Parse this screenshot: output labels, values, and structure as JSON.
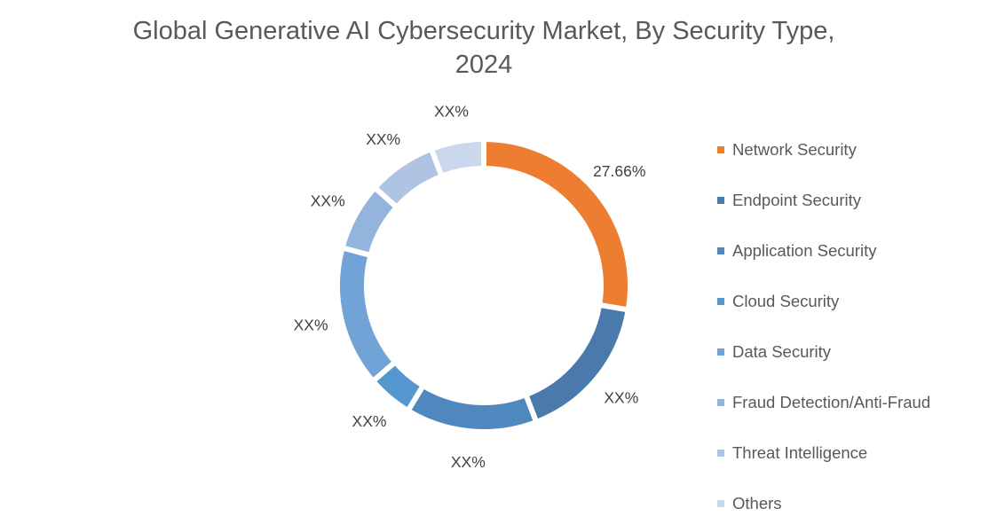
{
  "chart_data": {
    "type": "pie",
    "variant": "donut",
    "title_lines": [
      "Global Generative AI Cybersecurity Market, By Security Type,",
      "2024"
    ],
    "legend_position": "right",
    "categories": [
      "Network Security",
      "Endpoint Security",
      "Application Security",
      "Cloud Security",
      "Data Security",
      "Fraud Detection/Anti-Fraud",
      "Threat Intelligence",
      "Others"
    ],
    "values": [
      27.66,
      16.5,
      14.5,
      5.0,
      15.5,
      7.5,
      7.5,
      5.84
    ],
    "data_labels": [
      "27.66%",
      "XX%",
      "XX%",
      "XX%",
      "XX%",
      "XX%",
      "XX%",
      "XX%"
    ],
    "colors": [
      "#ED7D31",
      "#4A7AAB",
      "#4F88BF",
      "#5598CF",
      "#71A3D6",
      "#95B4DD",
      "#AFC4E2",
      "#C9D8EC"
    ]
  }
}
